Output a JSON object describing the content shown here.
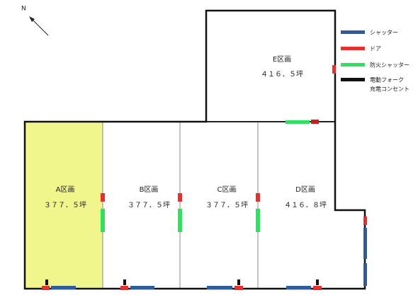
{
  "compass": "N",
  "areas": [
    {
      "name": "E区画",
      "size": "４１６．５坪"
    },
    {
      "name": "A区画",
      "size": "３７７．５坪"
    },
    {
      "name": "B区画",
      "size": "３７７．５坪"
    },
    {
      "name": "C区画",
      "size": "３７７．５坪"
    },
    {
      "name": "D区画",
      "size": "４１６．８坪"
    }
  ],
  "legend": [
    "シャッター",
    "ドア",
    "防火シャッター",
    "電動フォーク",
    "充電コンセント"
  ]
}
